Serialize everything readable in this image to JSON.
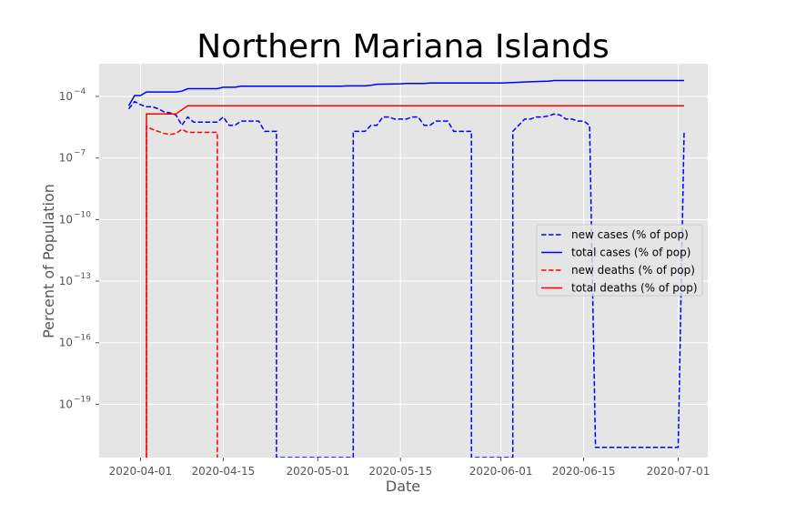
{
  "chart_data": {
    "type": "line",
    "title": "Northern Mariana Islands",
    "xlabel": "Date",
    "ylabel": "Percent of Population",
    "yscale": "log",
    "grid": true,
    "legend_placement": "center-right",
    "x_ticks": [
      "2020-04-01",
      "2020-04-15",
      "2020-05-01",
      "2020-05-15",
      "2020-06-01",
      "2020-06-15",
      "2020-07-01"
    ],
    "y_ticks": [
      {
        "exp": -4,
        "base": "10",
        "power": "−4"
      },
      {
        "exp": -7,
        "base": "10",
        "power": "−7"
      },
      {
        "exp": -10,
        "base": "10",
        "power": "−10"
      },
      {
        "exp": -13,
        "base": "10",
        "power": "−13"
      },
      {
        "exp": -16,
        "base": "10",
        "power": "−16"
      },
      {
        "exp": -19,
        "base": "10",
        "power": "−19"
      }
    ],
    "ylim_log10": [
      -21.6,
      -2.4
    ],
    "xlim": [
      "2020-03-25",
      "2020-07-06"
    ],
    "colors": {
      "cases": "#0000ff",
      "deaths": "#ff0000",
      "background": "#e5e5e5",
      "grid": "#ffffff"
    },
    "series": [
      {
        "name": "new cases (% of pop)",
        "color": "#0000ff",
        "dash": true,
        "points": [
          [
            "2020-03-30",
            -4.6
          ],
          [
            "2020-03-31",
            -4.25
          ],
          [
            "2020-04-01",
            -4.4
          ],
          [
            "2020-04-02",
            -4.5
          ],
          [
            "2020-04-03",
            -4.5
          ],
          [
            "2020-04-04",
            -4.6
          ],
          [
            "2020-04-05",
            -4.75
          ],
          [
            "2020-04-06",
            -4.8
          ],
          [
            "2020-04-07",
            -4.9
          ],
          [
            "2020-04-08",
            -5.4
          ],
          [
            "2020-04-09",
            -5.0
          ],
          [
            "2020-04-10",
            -5.25
          ],
          [
            "2020-04-11",
            -5.25
          ],
          [
            "2020-04-12",
            -5.25
          ],
          [
            "2020-04-13",
            -5.25
          ],
          [
            "2020-04-14",
            -5.25
          ],
          [
            "2020-04-15",
            -5.0
          ],
          [
            "2020-04-16",
            -5.4
          ],
          [
            "2020-04-17",
            -5.4
          ],
          [
            "2020-04-18",
            -5.2
          ],
          [
            "2020-04-19",
            -5.2
          ],
          [
            "2020-04-20",
            -5.2
          ],
          [
            "2020-04-21",
            -5.2
          ],
          [
            "2020-04-22",
            -5.7
          ],
          [
            "2020-04-23",
            -5.7
          ],
          [
            "2020-04-24",
            -5.7
          ],
          [
            "2020-04-24",
            -21.6
          ],
          [
            "2020-05-07",
            -21.6
          ],
          [
            "2020-05-07",
            -5.7
          ],
          [
            "2020-05-08",
            -5.7
          ],
          [
            "2020-05-09",
            -5.7
          ],
          [
            "2020-05-10",
            -5.4
          ],
          [
            "2020-05-11",
            -5.4
          ],
          [
            "2020-05-12",
            -5.0
          ],
          [
            "2020-05-13",
            -5.0
          ],
          [
            "2020-05-14",
            -5.1
          ],
          [
            "2020-05-15",
            -5.1
          ],
          [
            "2020-05-16",
            -5.1
          ],
          [
            "2020-05-17",
            -5.0
          ],
          [
            "2020-05-18",
            -5.0
          ],
          [
            "2020-05-19",
            -5.4
          ],
          [
            "2020-05-20",
            -5.4
          ],
          [
            "2020-05-21",
            -5.2
          ],
          [
            "2020-05-22",
            -5.2
          ],
          [
            "2020-05-23",
            -5.2
          ],
          [
            "2020-05-24",
            -5.7
          ],
          [
            "2020-05-25",
            -5.7
          ],
          [
            "2020-05-26",
            -5.7
          ],
          [
            "2020-05-27",
            -5.7
          ],
          [
            "2020-05-27",
            -21.6
          ],
          [
            "2020-06-03",
            -21.6
          ],
          [
            "2020-06-03",
            -5.7
          ],
          [
            "2020-06-04",
            -5.4
          ],
          [
            "2020-06-05",
            -5.1
          ],
          [
            "2020-06-06",
            -5.1
          ],
          [
            "2020-06-07",
            -5.0
          ],
          [
            "2020-06-08",
            -5.0
          ],
          [
            "2020-06-09",
            -4.95
          ],
          [
            "2020-06-10",
            -4.85
          ],
          [
            "2020-06-11",
            -4.9
          ],
          [
            "2020-06-12",
            -5.1
          ],
          [
            "2020-06-13",
            -5.1
          ],
          [
            "2020-06-14",
            -5.2
          ],
          [
            "2020-06-15",
            -5.2
          ],
          [
            "2020-06-16",
            -5.4
          ],
          [
            "2020-06-17",
            -21.1
          ],
          [
            "2020-06-30",
            -21.1
          ],
          [
            "2020-07-01",
            -21.1
          ],
          [
            "2020-07-02",
            -5.7
          ]
        ]
      },
      {
        "name": "total cases (% of pop)",
        "color": "#0000ff",
        "dash": false,
        "points": [
          [
            "2020-03-30",
            -4.45
          ],
          [
            "2020-03-31",
            -3.95
          ],
          [
            "2020-04-01",
            -3.95
          ],
          [
            "2020-04-02",
            -3.78
          ],
          [
            "2020-04-07",
            -3.78
          ],
          [
            "2020-04-08",
            -3.74
          ],
          [
            "2020-04-09",
            -3.62
          ],
          [
            "2020-04-14",
            -3.62
          ],
          [
            "2020-04-15",
            -3.55
          ],
          [
            "2020-04-17",
            -3.55
          ],
          [
            "2020-04-18",
            -3.5
          ],
          [
            "2020-05-05",
            -3.5
          ],
          [
            "2020-05-06",
            -3.48
          ],
          [
            "2020-05-09",
            -3.48
          ],
          [
            "2020-05-10",
            -3.45
          ],
          [
            "2020-05-11",
            -3.4
          ],
          [
            "2020-05-15",
            -3.38
          ],
          [
            "2020-05-16",
            -3.36
          ],
          [
            "2020-05-19",
            -3.36
          ],
          [
            "2020-05-20",
            -3.34
          ],
          [
            "2020-06-01",
            -3.34
          ],
          [
            "2020-06-03",
            -3.32
          ],
          [
            "2020-06-05",
            -3.29
          ],
          [
            "2020-06-07",
            -3.27
          ],
          [
            "2020-06-09",
            -3.25
          ],
          [
            "2020-06-10",
            -3.22
          ],
          [
            "2020-07-02",
            -3.22
          ]
        ]
      },
      {
        "name": "new deaths (% of pop)",
        "color": "#ff0000",
        "dash": true,
        "points": [
          [
            "2020-04-02",
            -21.6
          ],
          [
            "2020-04-02",
            -5.45
          ],
          [
            "2020-04-03",
            -5.6
          ],
          [
            "2020-04-04",
            -5.7
          ],
          [
            "2020-04-05",
            -5.8
          ],
          [
            "2020-04-06",
            -5.85
          ],
          [
            "2020-04-07",
            -5.8
          ],
          [
            "2020-04-08",
            -5.6
          ],
          [
            "2020-04-09",
            -5.75
          ],
          [
            "2020-04-10",
            -5.75
          ],
          [
            "2020-04-11",
            -5.75
          ],
          [
            "2020-04-12",
            -5.75
          ],
          [
            "2020-04-13",
            -5.75
          ],
          [
            "2020-04-14",
            -5.75
          ],
          [
            "2020-04-14",
            -21.6
          ]
        ]
      },
      {
        "name": "total deaths (% of pop)",
        "color": "#ff0000",
        "dash": false,
        "points": [
          [
            "2020-04-02",
            -21.6
          ],
          [
            "2020-04-02",
            -4.85
          ],
          [
            "2020-04-07",
            -4.85
          ],
          [
            "2020-04-08",
            -4.65
          ],
          [
            "2020-04-09",
            -4.45
          ],
          [
            "2020-07-02",
            -4.45
          ]
        ]
      }
    ]
  }
}
